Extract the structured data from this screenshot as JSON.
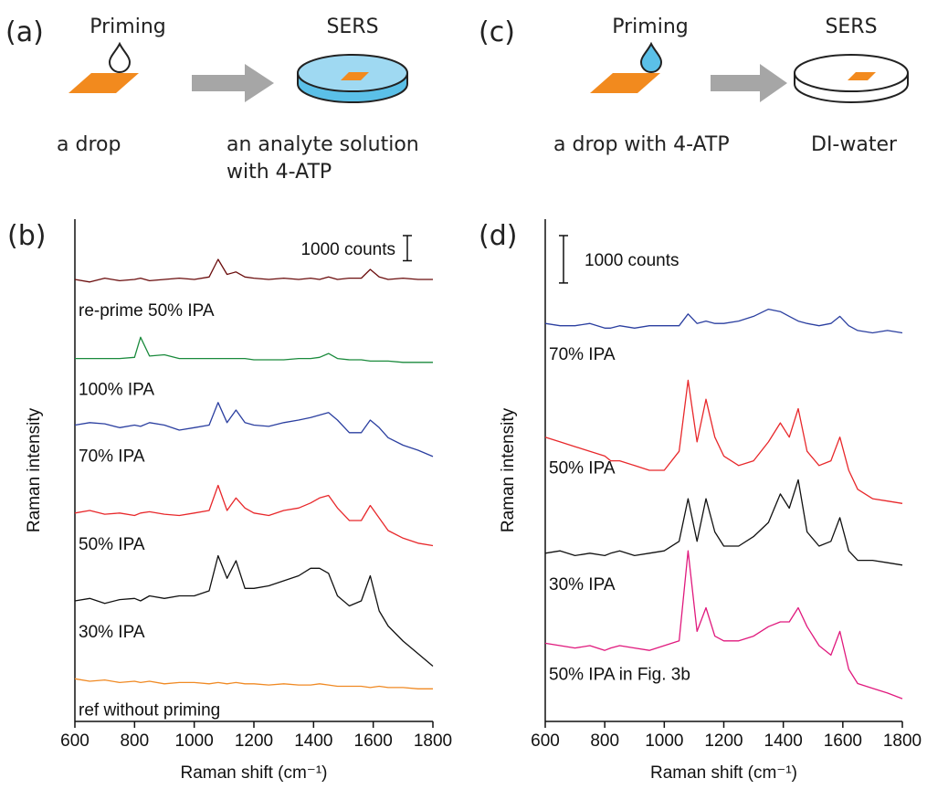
{
  "schematics": [
    {
      "panel_label": "(a)",
      "step1": "Priming",
      "step2": "SERS",
      "caption1": [
        "a drop"
      ],
      "caption2": [
        "an analyte solution",
        "with 4-ATP"
      ]
    },
    {
      "panel_label": "(c)",
      "step1": "Priming",
      "step2": "SERS",
      "caption1": [
        "a drop with 4-ATP"
      ],
      "caption2": [
        "DI-water"
      ]
    }
  ],
  "chart_data": [
    {
      "type": "line",
      "panel_label": "(b)",
      "x_label": "Raman shift (cm⁻¹)",
      "y_label": "Raman intensity",
      "xlim": [
        600,
        1800
      ],
      "xticks": [
        600,
        800,
        1000,
        1200,
        1400,
        1600,
        1800
      ],
      "ylim": [
        0,
        20000
      ],
      "scale_bar": {
        "value": 1000,
        "label": "1000 counts"
      },
      "x": [
        600,
        650,
        700,
        750,
        800,
        820,
        850,
        900,
        950,
        1000,
        1050,
        1080,
        1110,
        1140,
        1170,
        1200,
        1250,
        1300,
        1350,
        1390,
        1420,
        1450,
        1480,
        1520,
        1560,
        1590,
        1620,
        1650,
        1700,
        1750,
        1800
      ],
      "series": [
        {
          "name": "re-prime 50% IPA",
          "color": "#6b0d0d",
          "values": [
            17600,
            17500,
            17650,
            17550,
            17600,
            17650,
            17550,
            17600,
            17650,
            17600,
            17700,
            18400,
            17800,
            17900,
            17700,
            17650,
            17600,
            17650,
            17600,
            17650,
            17600,
            17700,
            17600,
            17650,
            17650,
            18000,
            17700,
            17600,
            17650,
            17600,
            17600
          ]
        },
        {
          "name": "100% IPA",
          "color": "#1a8a3c",
          "values": [
            14450,
            14450,
            14450,
            14450,
            14500,
            15300,
            14550,
            14600,
            14450,
            14450,
            14450,
            14450,
            14450,
            14450,
            14450,
            14400,
            14400,
            14400,
            14450,
            14450,
            14500,
            14650,
            14450,
            14400,
            14400,
            14350,
            14350,
            14350,
            14300,
            14300,
            14300
          ]
        },
        {
          "name": "70% IPA",
          "color": "#2b3fa0",
          "values": [
            11800,
            11900,
            11850,
            11700,
            11800,
            11750,
            11900,
            11800,
            11600,
            11700,
            11800,
            12700,
            11900,
            12400,
            11900,
            11800,
            11750,
            11900,
            12000,
            12100,
            12200,
            12300,
            12000,
            11500,
            11500,
            12000,
            11700,
            11300,
            11000,
            10800,
            10550
          ]
        },
        {
          "name": "50% IPA",
          "color": "#e8282b",
          "values": [
            8300,
            8400,
            8250,
            8300,
            8200,
            8300,
            8350,
            8250,
            8200,
            8300,
            8400,
            9400,
            8400,
            8900,
            8500,
            8300,
            8200,
            8400,
            8500,
            8700,
            8900,
            9000,
            8500,
            8000,
            8000,
            8600,
            8100,
            7600,
            7300,
            7100,
            7000
          ]
        },
        {
          "name": "30% IPA",
          "color": "#111111",
          "values": [
            4800,
            4900,
            4700,
            4850,
            4900,
            4800,
            5000,
            4900,
            5000,
            5000,
            5200,
            6600,
            5700,
            6400,
            5300,
            5300,
            5400,
            5600,
            5800,
            6100,
            6100,
            5900,
            5000,
            4600,
            4800,
            5800,
            4400,
            3800,
            3200,
            2700,
            2200
          ]
        },
        {
          "name": "ref without priming",
          "color": "#f08a24",
          "values": [
            1700,
            1600,
            1650,
            1550,
            1600,
            1550,
            1600,
            1500,
            1550,
            1550,
            1500,
            1550,
            1500,
            1550,
            1500,
            1500,
            1450,
            1500,
            1450,
            1450,
            1500,
            1450,
            1400,
            1400,
            1400,
            1350,
            1400,
            1350,
            1350,
            1300,
            1300
          ]
        }
      ]
    },
    {
      "type": "line",
      "panel_label": "(d)",
      "x_label": "Raman shift (cm⁻¹)",
      "y_label": "Raman intensity",
      "xlim": [
        600,
        1800
      ],
      "xticks": [
        600,
        800,
        1000,
        1200,
        1400,
        1600,
        1800
      ],
      "ylim": [
        0,
        10600
      ],
      "scale_bar": {
        "value": 1000,
        "label": "1000 counts"
      },
      "x": [
        600,
        650,
        700,
        750,
        800,
        820,
        850,
        900,
        950,
        1000,
        1050,
        1080,
        1110,
        1140,
        1170,
        1200,
        1250,
        1300,
        1350,
        1390,
        1420,
        1450,
        1480,
        1520,
        1560,
        1590,
        1620,
        1650,
        1700,
        1750,
        1800
      ],
      "series": [
        {
          "name": "70% IPA",
          "color": "#2b3fa0",
          "values": [
            8400,
            8350,
            8350,
            8400,
            8300,
            8300,
            8350,
            8300,
            8350,
            8350,
            8350,
            8600,
            8400,
            8450,
            8400,
            8400,
            8450,
            8550,
            8700,
            8650,
            8550,
            8450,
            8400,
            8350,
            8400,
            8550,
            8350,
            8250,
            8200,
            8250,
            8200
          ]
        },
        {
          "name": "50% IPA",
          "color": "#e8282b",
          "values": [
            6000,
            5900,
            5800,
            5700,
            5600,
            5500,
            5500,
            5400,
            5300,
            5300,
            5700,
            7200,
            5900,
            6800,
            6000,
            5600,
            5400,
            5500,
            5900,
            6300,
            6000,
            6600,
            5700,
            5400,
            5500,
            6000,
            5300,
            4900,
            4700,
            4650,
            4600
          ]
        },
        {
          "name": "30% IPA",
          "color": "#111111",
          "values": [
            3550,
            3600,
            3500,
            3550,
            3500,
            3550,
            3600,
            3500,
            3550,
            3600,
            3800,
            4700,
            3800,
            4700,
            4000,
            3700,
            3700,
            3900,
            4200,
            4800,
            4500,
            5100,
            4000,
            3700,
            3800,
            4300,
            3600,
            3400,
            3400,
            3350,
            3300
          ]
        },
        {
          "name": "50% IPA in Fig. 3b",
          "color": "#e0197d",
          "values": [
            1650,
            1600,
            1550,
            1600,
            1500,
            1550,
            1600,
            1550,
            1500,
            1600,
            1700,
            3600,
            1900,
            2400,
            1800,
            1700,
            1700,
            1800,
            2000,
            2100,
            2100,
            2400,
            2000,
            1600,
            1400,
            1900,
            1100,
            800,
            700,
            600,
            480
          ]
        }
      ]
    }
  ]
}
